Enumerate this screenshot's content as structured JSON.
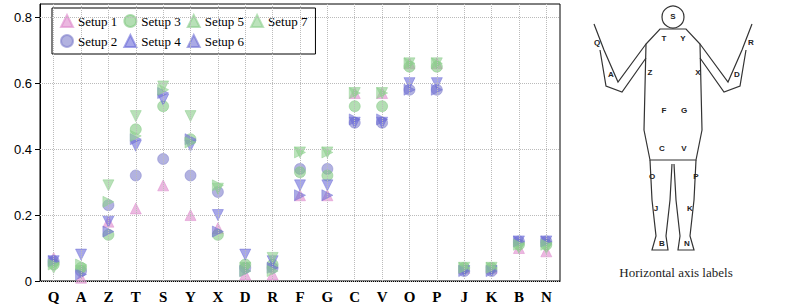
{
  "chart_data": {
    "type": "scatter",
    "annotation": "Horizontal axis labels",
    "categories": [
      "Q",
      "A",
      "Z",
      "T",
      "S",
      "Y",
      "X",
      "D",
      "R",
      "F",
      "G",
      "C",
      "V",
      "O",
      "P",
      "J",
      "K",
      "B",
      "N"
    ],
    "ylim": [
      0,
      0.84
    ],
    "yticks": [
      0,
      0.2,
      0.4,
      0.6,
      0.8
    ],
    "grid": true,
    "legend": "upper left",
    "series": [
      {
        "name": "Setup 1",
        "color": "#dd88cc",
        "marker": "triangle_up",
        "values": [
          0.07,
          0.01,
          0.18,
          0.22,
          0.29,
          0.2,
          0.16,
          0.02,
          0.02,
          0.26,
          0.26,
          0.57,
          0.57,
          0.66,
          0.66,
          0.04,
          0.04,
          0.1,
          0.09
        ]
      },
      {
        "name": "Setup 2",
        "color": "#7f7fcc",
        "marker": "circle",
        "values": [
          0.06,
          0.03,
          0.23,
          0.32,
          0.37,
          0.32,
          0.27,
          0.04,
          0.04,
          0.34,
          0.34,
          0.48,
          0.48,
          0.58,
          0.58,
          0.03,
          0.03,
          0.12,
          0.12
        ]
      },
      {
        "name": "Setup 3",
        "color": "#80c880",
        "marker": "circle",
        "values": [
          0.05,
          0.04,
          0.14,
          0.46,
          0.53,
          0.43,
          0.14,
          0.05,
          0.05,
          0.33,
          0.32,
          0.53,
          0.53,
          0.65,
          0.65,
          0.04,
          0.04,
          0.11,
          0.11
        ]
      },
      {
        "name": "Setup 4",
        "color": "#6a6ad8",
        "marker": "triangle_down",
        "values": [
          0.06,
          0.08,
          0.18,
          0.41,
          0.55,
          0.41,
          0.2,
          0.08,
          0.06,
          0.29,
          0.29,
          0.48,
          0.48,
          0.6,
          0.6,
          0.03,
          0.03,
          0.12,
          0.12
        ]
      },
      {
        "name": "Setup 5",
        "color": "#88cc88",
        "marker": "triangle_down",
        "values": [
          0.04,
          0.03,
          0.29,
          0.5,
          0.59,
          0.5,
          0.28,
          0.04,
          0.07,
          0.39,
          0.39,
          0.57,
          0.57,
          0.66,
          0.66,
          0.04,
          0.04,
          0.1,
          0.1
        ]
      },
      {
        "name": "Setup 6",
        "color": "#7272d4",
        "marker": "triangle_right",
        "values": [
          0.06,
          0.02,
          0.15,
          0.43,
          0.57,
          0.43,
          0.15,
          0.03,
          0.04,
          0.26,
          0.26,
          0.49,
          0.49,
          0.58,
          0.58,
          0.03,
          0.03,
          0.12,
          0.12
        ]
      },
      {
        "name": "Setup 7",
        "color": "#8fd08f",
        "marker": "triangle_right",
        "values": [
          0.05,
          0.05,
          0.24,
          0.44,
          0.58,
          0.42,
          0.29,
          0.03,
          0.03,
          0.39,
          0.39,
          0.57,
          0.57,
          0.66,
          0.66,
          0.04,
          0.04,
          0.11,
          0.11
        ]
      }
    ]
  }
}
